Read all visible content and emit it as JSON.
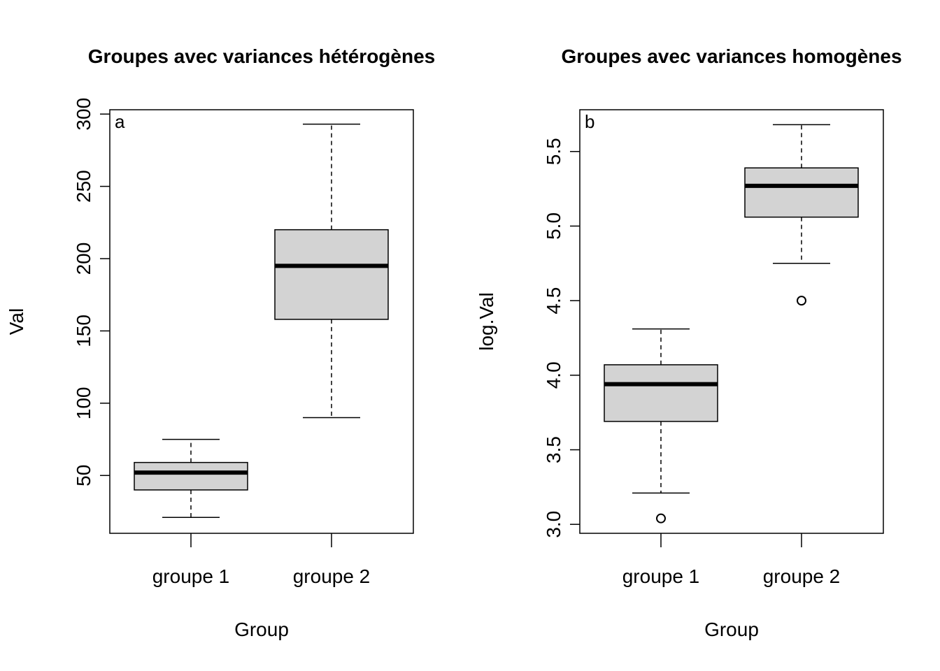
{
  "chart_data": [
    {
      "type": "boxplot",
      "title": "Groupes avec variances hétérogènes",
      "panel_label": "a",
      "xlabel": "Group",
      "ylabel": "Val",
      "categories": [
        "groupe 1",
        "groupe 2"
      ],
      "boxes": [
        {
          "category": "groupe 1",
          "whisker_low": 21,
          "q1": 40,
          "median": 52,
          "q3": 59,
          "whisker_high": 75,
          "outliers": []
        },
        {
          "category": "groupe 2",
          "whisker_low": 90,
          "q1": 158,
          "median": 195,
          "q3": 220,
          "whisker_high": 293,
          "outliers": []
        }
      ],
      "ylim": [
        10,
        303
      ],
      "yticks": [
        50,
        100,
        150,
        200,
        250,
        300
      ],
      "ytick_labels": [
        "50",
        "100",
        "150",
        "200",
        "250",
        "300"
      ],
      "box_fill": "#d3d3d3"
    },
    {
      "type": "boxplot",
      "title": "Groupes avec variances homogènes",
      "panel_label": "b",
      "xlabel": "Group",
      "ylabel": "log.Val",
      "categories": [
        "groupe 1",
        "groupe 2"
      ],
      "boxes": [
        {
          "category": "groupe 1",
          "whisker_low": 3.21,
          "q1": 3.69,
          "median": 3.94,
          "q3": 4.07,
          "whisker_high": 4.31,
          "outliers": [
            3.04
          ]
        },
        {
          "category": "groupe 2",
          "whisker_low": 4.75,
          "q1": 5.06,
          "median": 5.27,
          "q3": 5.39,
          "whisker_high": 5.68,
          "outliers": [
            4.5
          ]
        }
      ],
      "ylim": [
        2.94,
        5.78
      ],
      "yticks": [
        3.0,
        3.5,
        4.0,
        4.5,
        5.0,
        5.5
      ],
      "ytick_labels": [
        "3.0",
        "3.5",
        "4.0",
        "4.5",
        "5.0",
        "5.5"
      ],
      "box_fill": "#d3d3d3"
    }
  ]
}
